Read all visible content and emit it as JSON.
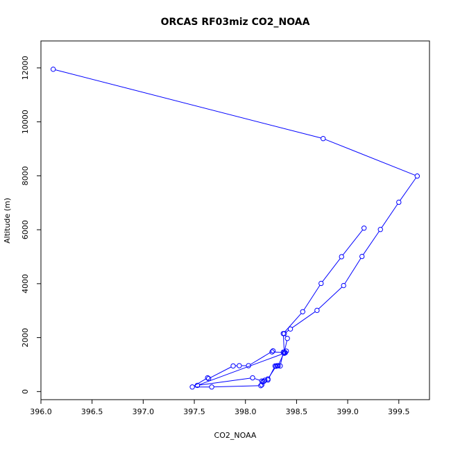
{
  "chart_data": {
    "type": "line",
    "title": "ORCAS RF03miz CO2_NOAA",
    "xlabel": "CO2_NOAA",
    "ylabel": "Altitude (m)",
    "xlim": [
      396.0,
      399.8
    ],
    "ylim": [
      -300,
      13000
    ],
    "xticks": [
      "396.0",
      "396.5",
      "397.0",
      "397.5",
      "398.0",
      "398.5",
      "399.0",
      "399.5"
    ],
    "yticks": [
      "0",
      "2000",
      "4000",
      "6000",
      "8000",
      "10000",
      "12000"
    ],
    "marker": "open-circle",
    "color": "#0000ff",
    "series": [
      {
        "x": [
          396.12,
          398.76,
          399.68,
          399.5,
          399.32,
          399.14,
          398.96,
          398.7,
          398.44,
          398.38,
          398.41,
          398.38,
          398.32,
          398.3,
          398.22,
          398.18,
          398.17,
          398.16,
          398.15,
          397.67,
          397.48,
          397.63,
          397.64,
          397.88,
          397.94,
          398.03,
          398.27,
          398.26,
          398.39,
          398.4,
          398.37,
          398.34,
          398.32,
          398.31,
          398.29,
          398.22,
          398.19,
          398.16,
          398.07,
          397.53,
          398.38,
          398.37,
          398.56,
          398.74,
          398.94,
          399.16
        ],
        "y": [
          11950,
          9380,
          7990,
          7020,
          6010,
          5010,
          3930,
          3010,
          2320,
          2150,
          1970,
          1460,
          960,
          940,
          470,
          380,
          360,
          250,
          220,
          170,
          170,
          510,
          480,
          950,
          960,
          960,
          1510,
          1470,
          1440,
          1500,
          1460,
          950,
          960,
          960,
          950,
          430,
          420,
          390,
          510,
          230,
          1420,
          2150,
          2960,
          4010,
          5000,
          6060
        ]
      }
    ]
  }
}
